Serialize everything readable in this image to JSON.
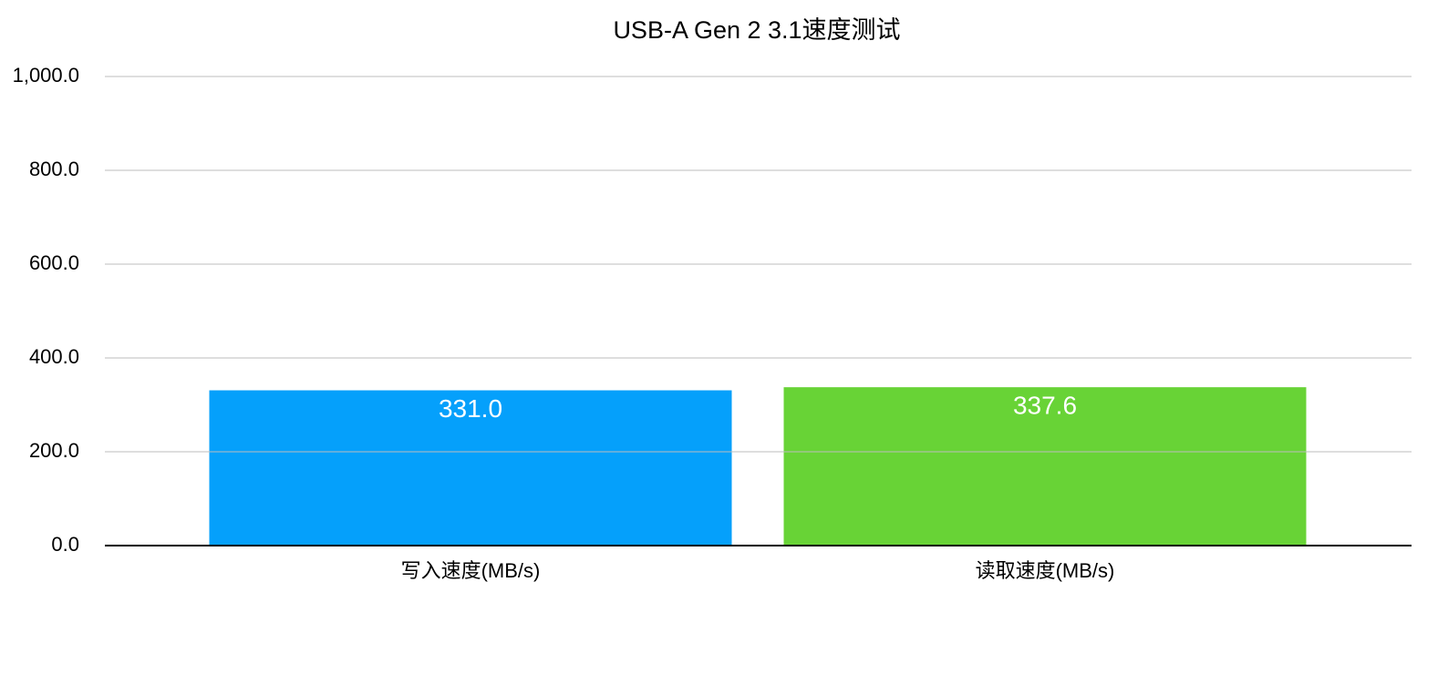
{
  "chart_data": {
    "type": "bar",
    "title": "USB-A Gen 2 3.1速度测试",
    "categories": [
      "写入速度(MB/s)",
      "读取速度(MB/s)"
    ],
    "values": [
      331.0,
      337.6
    ],
    "value_labels": [
      "331.0",
      "337.6"
    ],
    "colors": [
      "#05a0fb",
      "#68d336"
    ],
    "ylim": [
      0,
      1000
    ],
    "yticks": [
      {
        "value": 0,
        "label": "0.0"
      },
      {
        "value": 200,
        "label": "200.0"
      },
      {
        "value": 400,
        "label": "400.0"
      },
      {
        "value": 600,
        "label": "600.0"
      },
      {
        "value": 800,
        "label": "800.0"
      },
      {
        "value": 1000,
        "label": "1,000.0"
      }
    ],
    "grid": true
  }
}
